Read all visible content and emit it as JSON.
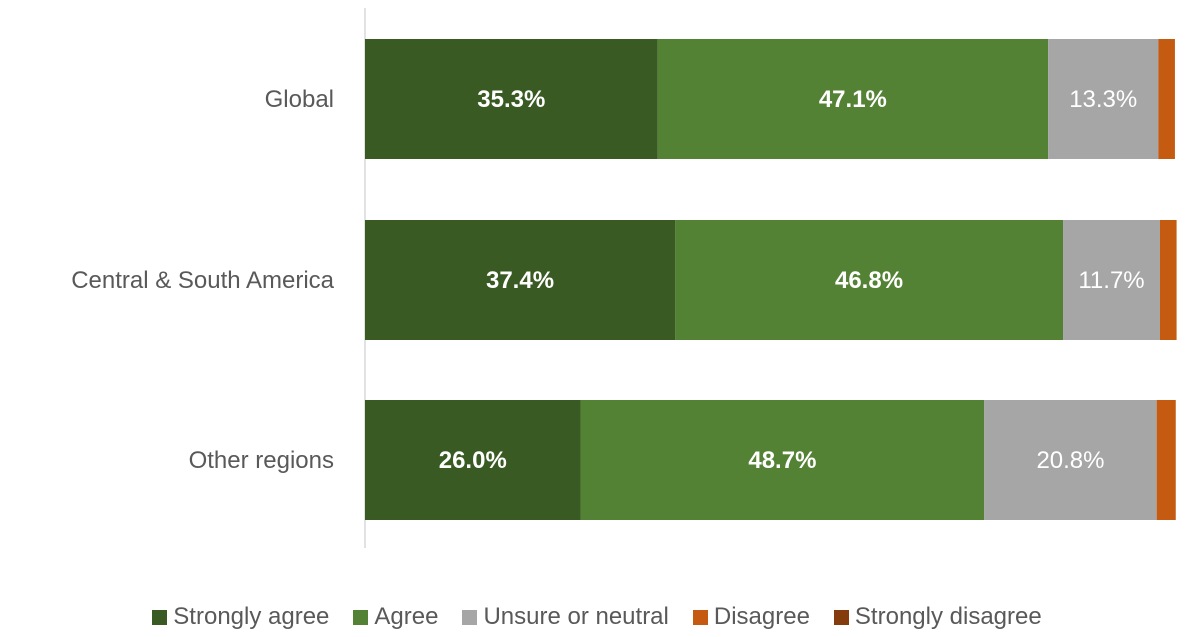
{
  "chart_data": {
    "type": "bar",
    "orientation": "horizontal",
    "stacked": true,
    "categories": [
      "Global",
      "Central & South America",
      "Other regions"
    ],
    "series": [
      {
        "name": "Strongly agree",
        "color": "#3a5a23",
        "values": [
          35.3,
          37.4,
          26.0
        ],
        "labels": [
          "35.3%",
          "37.4%",
          "26.0%"
        ],
        "label_bold": true,
        "label_color": "#ffffff"
      },
      {
        "name": "Agree",
        "color": "#548235",
        "values": [
          47.1,
          46.8,
          48.7
        ],
        "labels": [
          "47.1%",
          "46.8%",
          "48.7%"
        ],
        "label_bold": true,
        "label_color": "#ffffff"
      },
      {
        "name": "Unsure or neutral",
        "color": "#a6a6a6",
        "values": [
          13.3,
          11.7,
          20.8
        ],
        "labels": [
          "13.3%",
          "11.7%",
          "20.8%"
        ],
        "label_bold": false,
        "label_color": "#ffffff"
      },
      {
        "name": "Disagree",
        "color": "#c55a11",
        "values": [
          2.0,
          2.0,
          2.3
        ],
        "labels": [
          null,
          null,
          null
        ]
      },
      {
        "name": "Strongly disagree",
        "color": "#843c0c",
        "values": [
          0,
          0,
          0
        ],
        "labels": [
          null,
          null,
          null
        ]
      }
    ],
    "xlim": [
      0,
      100
    ],
    "grid": false,
    "legend_position": "bottom"
  }
}
